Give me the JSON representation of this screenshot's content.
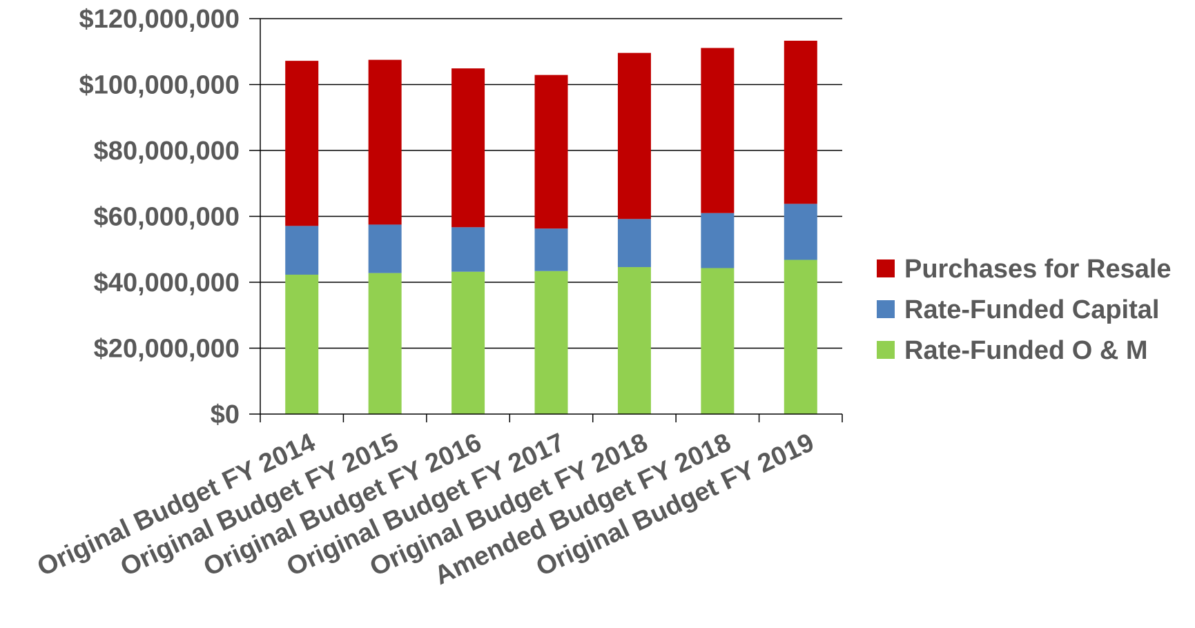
{
  "chart_data": {
    "type": "bar",
    "stacked": true,
    "categories": [
      "Original Budget FY 2014",
      "Original Budget FY 2015",
      "Original Budget FY 2016",
      "Original Budget FY 2017",
      "Original Budget FY 2018",
      "Amended Budget FY 2018",
      "Original Budget FY 2019"
    ],
    "series": [
      {
        "name": "Rate-Funded O & M",
        "color": "#92d050",
        "values": [
          42300000,
          42800000,
          43200000,
          43400000,
          44600000,
          44300000,
          46800000
        ]
      },
      {
        "name": "Rate-Funded Capital",
        "color": "#4f81bd",
        "values": [
          14800000,
          14700000,
          13500000,
          12900000,
          14600000,
          16700000,
          17000000
        ]
      },
      {
        "name": "Purchases for Resale",
        "color": "#c00000",
        "values": [
          50100000,
          50000000,
          48200000,
          46600000,
          50400000,
          50100000,
          49500000
        ]
      }
    ],
    "y_ticks": [
      "$0",
      "$20,000,000",
      "$40,000,000",
      "$60,000,000",
      "$80,000,000",
      "$100,000,000",
      "$120,000,000"
    ],
    "ylim": [
      0,
      120000000
    ],
    "grid": "horizontal",
    "legend": {
      "position": "right",
      "order": [
        "Purchases for Resale",
        "Rate-Funded Capital",
        "Rate-Funded O & M"
      ]
    },
    "title": "",
    "xlabel": "",
    "ylabel": ""
  }
}
